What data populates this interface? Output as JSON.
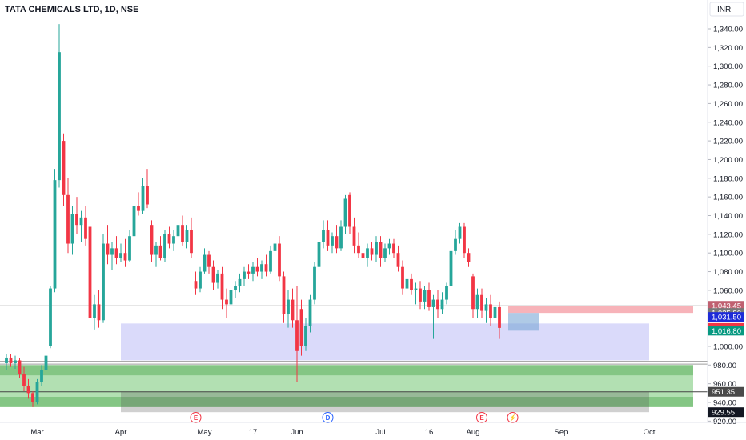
{
  "header": {
    "title": "TATA CHEMICALS LTD, 1D, NSE"
  },
  "currency": "INR",
  "colors": {
    "up": "#26a69a",
    "down": "#f23645",
    "zone_blue": "#8c8cf0",
    "zone_green": "#66c266",
    "zone_red": "#f28a93",
    "earnings": "#f23645",
    "dividend": "#2962ff"
  },
  "chart_data": {
    "type": "candlestick",
    "title": "TATA CHEMICALS LTD, 1D, NSE",
    "ylim": [
      918,
      1350
    ],
    "yticks": [
      1340,
      1320,
      1300,
      1280,
      1260,
      1240,
      1220,
      1200,
      1180,
      1160,
      1140,
      1120,
      1100,
      1080,
      1060,
      1040,
      1020,
      1000,
      980,
      960,
      940,
      920
    ],
    "ytick_labels": [
      "1,340.00",
      "1,320.00",
      "1,300.00",
      "1,280.00",
      "1,260.00",
      "1,240.00",
      "1,220.00",
      "1,200.00",
      "1,180.00",
      "1,160.00",
      "1,140.00",
      "1,120.00",
      "1,100.00",
      "1,080.00",
      "1,060.00",
      "1,040.00",
      "1,020.00",
      "1,000.00",
      "980.00",
      "960.00",
      "940.00",
      "920.00"
    ],
    "xlim": [
      0,
      160
    ],
    "x_ticks": [
      {
        "x": 7,
        "label": "Mar"
      },
      {
        "x": 26,
        "label": "Apr"
      },
      {
        "x": 45,
        "label": "May"
      },
      {
        "x": 56,
        "label": "17"
      },
      {
        "x": 66,
        "label": "Jun"
      },
      {
        "x": 85,
        "label": "Jul"
      },
      {
        "x": 96,
        "label": "16"
      },
      {
        "x": 106,
        "label": "Aug"
      },
      {
        "x": 126,
        "label": "Sep"
      },
      {
        "x": 146,
        "label": "Oct"
      }
    ],
    "candles": [
      {
        "x": 0,
        "o": 982,
        "h": 992,
        "l": 975,
        "c": 988
      },
      {
        "x": 1,
        "o": 988,
        "h": 992,
        "l": 978,
        "c": 982
      },
      {
        "x": 2,
        "o": 982,
        "h": 990,
        "l": 976,
        "c": 985
      },
      {
        "x": 3,
        "o": 985,
        "h": 988,
        "l": 966,
        "c": 970
      },
      {
        "x": 4,
        "o": 970,
        "h": 978,
        "l": 952,
        "c": 958
      },
      {
        "x": 5,
        "o": 958,
        "h": 965,
        "l": 944,
        "c": 950
      },
      {
        "x": 6,
        "o": 950,
        "h": 952,
        "l": 935,
        "c": 940
      },
      {
        "x": 7,
        "o": 940,
        "h": 965,
        "l": 938,
        "c": 962
      },
      {
        "x": 8,
        "o": 962,
        "h": 980,
        "l": 958,
        "c": 975
      },
      {
        "x": 9,
        "o": 975,
        "h": 1008,
        "l": 970,
        "c": 990
      },
      {
        "x": 10,
        "o": 1000,
        "h": 1065,
        "l": 998,
        "c": 1062
      },
      {
        "x": 11,
        "o": 1062,
        "h": 1190,
        "l": 1058,
        "c": 1178
      },
      {
        "x": 12,
        "o": 1178,
        "h": 1345,
        "l": 1170,
        "c": 1315
      },
      {
        "x": 13,
        "o": 1220,
        "h": 1228,
        "l": 1150,
        "c": 1162
      },
      {
        "x": 14,
        "o": 1162,
        "h": 1180,
        "l": 1100,
        "c": 1110
      },
      {
        "x": 15,
        "o": 1110,
        "h": 1150,
        "l": 1098,
        "c": 1142
      },
      {
        "x": 16,
        "o": 1142,
        "h": 1160,
        "l": 1120,
        "c": 1130
      },
      {
        "x": 17,
        "o": 1130,
        "h": 1145,
        "l": 1112,
        "c": 1138
      },
      {
        "x": 18,
        "o": 1138,
        "h": 1150,
        "l": 1108,
        "c": 1115
      },
      {
        "x": 19,
        "o": 1128,
        "h": 1130,
        "l": 1020,
        "c": 1030
      },
      {
        "x": 20,
        "o": 1030,
        "h": 1055,
        "l": 1018,
        "c": 1045
      },
      {
        "x": 21,
        "o": 1045,
        "h": 1060,
        "l": 1020,
        "c": 1028
      },
      {
        "x": 22,
        "o": 1028,
        "h": 1120,
        "l": 1025,
        "c": 1110
      },
      {
        "x": 23,
        "o": 1110,
        "h": 1130,
        "l": 1088,
        "c": 1098
      },
      {
        "x": 24,
        "o": 1098,
        "h": 1112,
        "l": 1082,
        "c": 1105
      },
      {
        "x": 25,
        "o": 1105,
        "h": 1118,
        "l": 1088,
        "c": 1095
      },
      {
        "x": 26,
        "o": 1095,
        "h": 1110,
        "l": 1090,
        "c": 1100
      },
      {
        "x": 27,
        "o": 1100,
        "h": 1115,
        "l": 1085,
        "c": 1092
      },
      {
        "x": 28,
        "o": 1092,
        "h": 1125,
        "l": 1090,
        "c": 1118
      },
      {
        "x": 29,
        "o": 1118,
        "h": 1160,
        "l": 1115,
        "c": 1150
      },
      {
        "x": 30,
        "o": 1150,
        "h": 1165,
        "l": 1140,
        "c": 1145
      },
      {
        "x": 31,
        "o": 1145,
        "h": 1180,
        "l": 1142,
        "c": 1172
      },
      {
        "x": 32,
        "o": 1172,
        "h": 1190,
        "l": 1148,
        "c": 1152
      },
      {
        "x": 33,
        "o": 1130,
        "h": 1135,
        "l": 1090,
        "c": 1098
      },
      {
        "x": 34,
        "o": 1098,
        "h": 1112,
        "l": 1085,
        "c": 1108
      },
      {
        "x": 35,
        "o": 1108,
        "h": 1118,
        "l": 1092,
        "c": 1095
      },
      {
        "x": 36,
        "o": 1095,
        "h": 1125,
        "l": 1090,
        "c": 1120
      },
      {
        "x": 37,
        "o": 1120,
        "h": 1128,
        "l": 1105,
        "c": 1110
      },
      {
        "x": 38,
        "o": 1110,
        "h": 1125,
        "l": 1102,
        "c": 1118
      },
      {
        "x": 39,
        "o": 1118,
        "h": 1138,
        "l": 1112,
        "c": 1130
      },
      {
        "x": 40,
        "o": 1130,
        "h": 1140,
        "l": 1108,
        "c": 1112
      },
      {
        "x": 41,
        "o": 1112,
        "h": 1130,
        "l": 1105,
        "c": 1125
      },
      {
        "x": 42,
        "o": 1125,
        "h": 1138,
        "l": 1095,
        "c": 1100
      },
      {
        "x": 43,
        "o": 1070,
        "h": 1080,
        "l": 1055,
        "c": 1062
      },
      {
        "x": 44,
        "o": 1062,
        "h": 1085,
        "l": 1058,
        "c": 1080
      },
      {
        "x": 45,
        "o": 1080,
        "h": 1105,
        "l": 1078,
        "c": 1098
      },
      {
        "x": 46,
        "o": 1098,
        "h": 1102,
        "l": 1078,
        "c": 1085
      },
      {
        "x": 47,
        "o": 1085,
        "h": 1092,
        "l": 1060,
        "c": 1068
      },
      {
        "x": 48,
        "o": 1068,
        "h": 1082,
        "l": 1062,
        "c": 1078
      },
      {
        "x": 49,
        "o": 1078,
        "h": 1085,
        "l": 1040,
        "c": 1050
      },
      {
        "x": 50,
        "o": 1050,
        "h": 1062,
        "l": 1030,
        "c": 1045
      },
      {
        "x": 51,
        "o": 1045,
        "h": 1065,
        "l": 1030,
        "c": 1060
      },
      {
        "x": 52,
        "o": 1060,
        "h": 1070,
        "l": 1052,
        "c": 1065
      },
      {
        "x": 53,
        "o": 1065,
        "h": 1078,
        "l": 1058,
        "c": 1072
      },
      {
        "x": 54,
        "o": 1072,
        "h": 1085,
        "l": 1065,
        "c": 1080
      },
      {
        "x": 55,
        "o": 1080,
        "h": 1088,
        "l": 1072,
        "c": 1078
      },
      {
        "x": 56,
        "o": 1078,
        "h": 1090,
        "l": 1070,
        "c": 1085
      },
      {
        "x": 57,
        "o": 1085,
        "h": 1095,
        "l": 1075,
        "c": 1080
      },
      {
        "x": 58,
        "o": 1080,
        "h": 1092,
        "l": 1072,
        "c": 1088
      },
      {
        "x": 59,
        "o": 1088,
        "h": 1098,
        "l": 1075,
        "c": 1080
      },
      {
        "x": 60,
        "o": 1080,
        "h": 1108,
        "l": 1078,
        "c": 1102
      },
      {
        "x": 61,
        "o": 1102,
        "h": 1125,
        "l": 1095,
        "c": 1110
      },
      {
        "x": 62,
        "o": 1110,
        "h": 1118,
        "l": 1070,
        "c": 1075
      },
      {
        "x": 63,
        "o": 1075,
        "h": 1080,
        "l": 1025,
        "c": 1035
      },
      {
        "x": 64,
        "o": 1035,
        "h": 1060,
        "l": 1020,
        "c": 1050
      },
      {
        "x": 65,
        "o": 1050,
        "h": 1062,
        "l": 1020,
        "c": 1028
      },
      {
        "x": 66,
        "o": 1028,
        "h": 1065,
        "l": 962,
        "c": 995
      },
      {
        "x": 67,
        "o": 1040,
        "h": 1050,
        "l": 990,
        "c": 1000
      },
      {
        "x": 68,
        "o": 1000,
        "h": 1030,
        "l": 995,
        "c": 1022
      },
      {
        "x": 69,
        "o": 1022,
        "h": 1055,
        "l": 1015,
        "c": 1050
      },
      {
        "x": 70,
        "o": 1050,
        "h": 1090,
        "l": 1045,
        "c": 1085
      },
      {
        "x": 71,
        "o": 1085,
        "h": 1120,
        "l": 1080,
        "c": 1112
      },
      {
        "x": 72,
        "o": 1112,
        "h": 1135,
        "l": 1105,
        "c": 1125
      },
      {
        "x": 73,
        "o": 1125,
        "h": 1135,
        "l": 1102,
        "c": 1108
      },
      {
        "x": 74,
        "o": 1108,
        "h": 1122,
        "l": 1100,
        "c": 1118
      },
      {
        "x": 75,
        "o": 1118,
        "h": 1130,
        "l": 1100,
        "c": 1105
      },
      {
        "x": 76,
        "o": 1105,
        "h": 1135,
        "l": 1102,
        "c": 1128
      },
      {
        "x": 77,
        "o": 1128,
        "h": 1162,
        "l": 1120,
        "c": 1158
      },
      {
        "x": 78,
        "o": 1162,
        "h": 1165,
        "l": 1120,
        "c": 1128
      },
      {
        "x": 79,
        "o": 1128,
        "h": 1138,
        "l": 1100,
        "c": 1108
      },
      {
        "x": 80,
        "o": 1108,
        "h": 1122,
        "l": 1095,
        "c": 1100
      },
      {
        "x": 81,
        "o": 1100,
        "h": 1112,
        "l": 1085,
        "c": 1095
      },
      {
        "x": 82,
        "o": 1095,
        "h": 1110,
        "l": 1085,
        "c": 1105
      },
      {
        "x": 83,
        "o": 1105,
        "h": 1112,
        "l": 1092,
        "c": 1098
      },
      {
        "x": 84,
        "o": 1098,
        "h": 1118,
        "l": 1090,
        "c": 1112
      },
      {
        "x": 85,
        "o": 1112,
        "h": 1118,
        "l": 1085,
        "c": 1095
      },
      {
        "x": 86,
        "o": 1095,
        "h": 1110,
        "l": 1090,
        "c": 1105
      },
      {
        "x": 87,
        "o": 1105,
        "h": 1115,
        "l": 1098,
        "c": 1110
      },
      {
        "x": 88,
        "o": 1110,
        "h": 1115,
        "l": 1095,
        "c": 1100
      },
      {
        "x": 89,
        "o": 1100,
        "h": 1108,
        "l": 1080,
        "c": 1085
      },
      {
        "x": 90,
        "o": 1085,
        "h": 1092,
        "l": 1055,
        "c": 1062
      },
      {
        "x": 91,
        "o": 1062,
        "h": 1080,
        "l": 1058,
        "c": 1072
      },
      {
        "x": 92,
        "o": 1072,
        "h": 1078,
        "l": 1055,
        "c": 1060
      },
      {
        "x": 93,
        "o": 1060,
        "h": 1068,
        "l": 1045,
        "c": 1062
      },
      {
        "x": 94,
        "o": 1062,
        "h": 1070,
        "l": 1040,
        "c": 1048
      },
      {
        "x": 95,
        "o": 1048,
        "h": 1065,
        "l": 1040,
        "c": 1060
      },
      {
        "x": 96,
        "o": 1060,
        "h": 1068,
        "l": 1038,
        "c": 1042
      },
      {
        "x": 97,
        "o": 1042,
        "h": 1055,
        "l": 1008,
        "c": 1050
      },
      {
        "x": 98,
        "o": 1050,
        "h": 1060,
        "l": 1030,
        "c": 1040
      },
      {
        "x": 99,
        "o": 1040,
        "h": 1058,
        "l": 1035,
        "c": 1050
      },
      {
        "x": 100,
        "o": 1050,
        "h": 1068,
        "l": 1045,
        "c": 1065
      },
      {
        "x": 101,
        "o": 1065,
        "h": 1110,
        "l": 1062,
        "c": 1102
      },
      {
        "x": 102,
        "o": 1102,
        "h": 1125,
        "l": 1098,
        "c": 1115
      },
      {
        "x": 103,
        "o": 1115,
        "h": 1132,
        "l": 1110,
        "c": 1128
      },
      {
        "x": 104,
        "o": 1128,
        "h": 1132,
        "l": 1095,
        "c": 1100
      },
      {
        "x": 105,
        "o": 1100,
        "h": 1105,
        "l": 1085,
        "c": 1090
      },
      {
        "x": 106,
        "o": 1075,
        "h": 1078,
        "l": 1030,
        "c": 1040
      },
      {
        "x": 107,
        "o": 1040,
        "h": 1062,
        "l": 1030,
        "c": 1055
      },
      {
        "x": 108,
        "o": 1055,
        "h": 1062,
        "l": 1030,
        "c": 1038
      },
      {
        "x": 109,
        "o": 1038,
        "h": 1052,
        "l": 1025,
        "c": 1045
      },
      {
        "x": 110,
        "o": 1045,
        "h": 1055,
        "l": 1022,
        "c": 1030
      },
      {
        "x": 111,
        "o": 1030,
        "h": 1050,
        "l": 1025,
        "c": 1042
      },
      {
        "x": 112,
        "o": 1042,
        "h": 1048,
        "l": 1008,
        "c": 1019.75
      }
    ],
    "zones": [
      {
        "name": "blue-zone",
        "x0": 26,
        "x1": 146,
        "y0": 985,
        "y1": 1024.5,
        "color": "#8c8cf0",
        "opacity": 0.32
      },
      {
        "name": "green-zone",
        "x0": -2,
        "x1": 156,
        "y0": 935,
        "y1": 980,
        "color": "#66c266",
        "opacity": 0.5
      },
      {
        "name": "green-band-upper",
        "x0": -2,
        "x1": 156,
        "y0": 969,
        "y1": 980,
        "color": "#3f9f3f",
        "opacity": 0.4
      },
      {
        "name": "green-band-lower",
        "x0": -2,
        "x1": 156,
        "y0": 935,
        "y1": 946,
        "color": "#3f9f3f",
        "opacity": 0.4
      },
      {
        "name": "grey-zone",
        "x0": 26,
        "x1": 146,
        "y0": 929.55,
        "y1": 951.35,
        "color": "#555555",
        "opacity": 0.28
      },
      {
        "name": "red-zone",
        "x0": 114,
        "x1": 156,
        "y0": 1035.8,
        "y1": 1043.45,
        "color": "#f28a93",
        "opacity": 0.65
      },
      {
        "name": "position-box",
        "x0": 114,
        "x1": 121,
        "y0": 1016.8,
        "y1": 1035.8,
        "color": "#7aa6d6",
        "opacity": 0.6
      }
    ],
    "hlines": [
      {
        "y": 984,
        "color": "#9e9e9e"
      },
      {
        "y": 981,
        "color": "#9e9e9e"
      },
      {
        "y": 951.35,
        "color": "#444444"
      },
      {
        "y": 1043.45,
        "color": "#999999"
      }
    ],
    "price_labels": [
      {
        "value": 1043.45,
        "text": "1,043.45",
        "bg": "#c06070"
      },
      {
        "value": 1035.8,
        "text": "1,035.80",
        "bg": "#787878"
      },
      {
        "value": 1031.5,
        "text": "1,031.50",
        "bg": "#1e2bd8"
      },
      {
        "value": 1019.75,
        "text": "1,019.75",
        "bg": "#f23645"
      },
      {
        "value": 1016.8,
        "text": "1,016.80",
        "bg": "#089981"
      },
      {
        "value": 951.35,
        "text": "951.35",
        "bg": "#4a4a4a"
      },
      {
        "value": 929.55,
        "text": "929.55",
        "bg": "#131722"
      }
    ],
    "events": [
      {
        "x": 43,
        "glyph": "E",
        "type": "earnings"
      },
      {
        "x": 73,
        "glyph": "D",
        "type": "dividend"
      },
      {
        "x": 108,
        "glyph": "E",
        "type": "earnings"
      },
      {
        "x": 115,
        "glyph": "⚡",
        "type": "earnings"
      }
    ]
  }
}
